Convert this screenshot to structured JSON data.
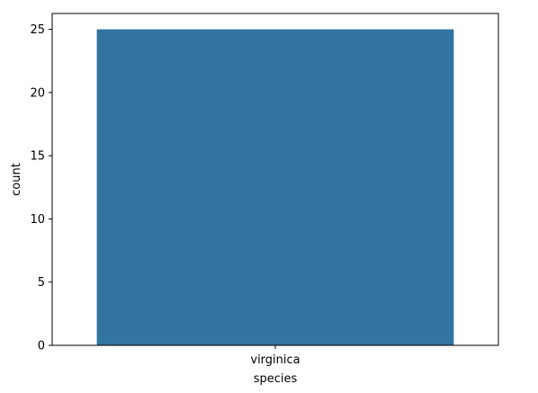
{
  "chart_data": {
    "type": "bar",
    "title": "",
    "xlabel": "species",
    "ylabel": "count",
    "categories": [
      "virginica"
    ],
    "values": [
      25
    ],
    "ylim": [
      0,
      26.25
    ],
    "yticks": [
      0,
      5,
      10,
      15,
      20,
      25
    ],
    "grid": false,
    "legend": "none",
    "bar_color": "#3274a1"
  }
}
